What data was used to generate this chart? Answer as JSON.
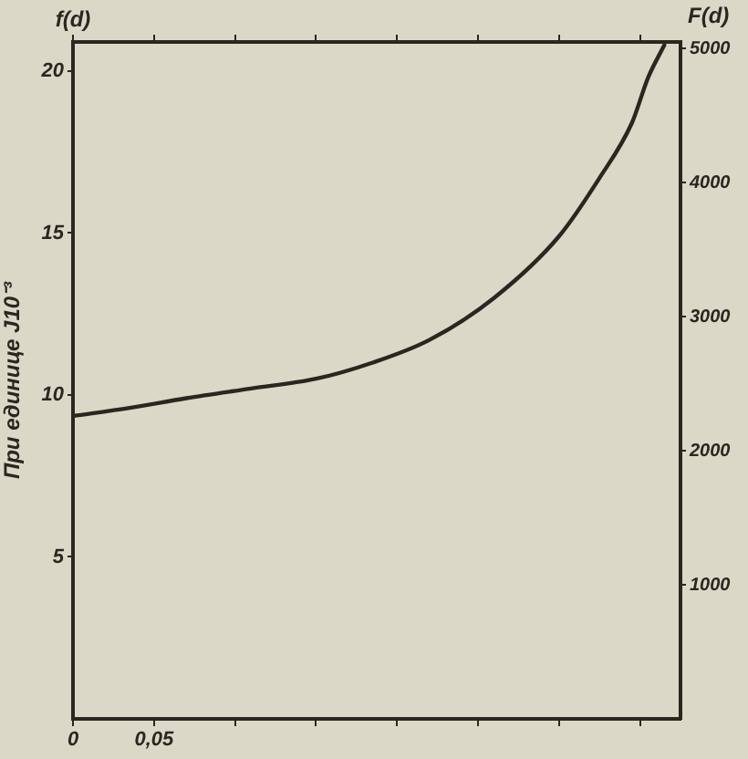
{
  "chart_data": {
    "type": "line",
    "ylabel": "При единице J10⁻³",
    "y2label": "F(d)",
    "annotations": [
      "f(d)"
    ],
    "x": [
      0,
      0.035,
      0.07,
      0.11,
      0.15,
      0.185,
      0.22,
      0.26,
      0.3,
      0.325,
      0.345,
      0.355,
      0.365
    ],
    "series": [
      {
        "color": "#2b2620",
        "values": [
          9.35,
          9.6,
          9.9,
          10.2,
          10.5,
          11.0,
          11.7,
          13.0,
          14.9,
          16.7,
          18.4,
          19.8,
          20.8
        ]
      }
    ],
    "xlim": [
      0,
      0.375
    ],
    "xticks": [
      0,
      {
        "value": 0.05,
        "label": "0,05"
      },
      {
        "value": 0.1,
        "label": null
      },
      {
        "value": 0.15,
        "label": null
      },
      {
        "value": 0.2,
        "label": null
      },
      {
        "value": 0.25,
        "label": null
      },
      {
        "value": 0.3,
        "label": null
      },
      {
        "value": 0.35,
        "label": null
      }
    ],
    "ylim": [
      0,
      20.9
    ],
    "yticks": [
      5,
      10,
      15,
      20
    ],
    "y2lim": [
      0,
      5050
    ],
    "y2ticks": [
      1000,
      2000,
      3000,
      4000,
      5000
    ],
    "grid": false,
    "legend": false,
    "marker": "none",
    "line_style": "solid"
  }
}
